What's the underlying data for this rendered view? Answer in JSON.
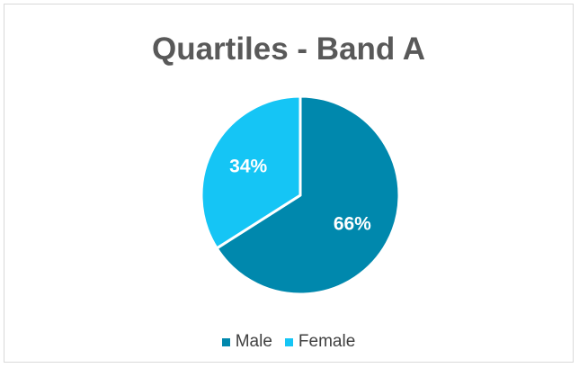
{
  "chart_data": {
    "type": "pie",
    "title": "Quartiles - Band A",
    "categories": [
      "Male",
      "Female"
    ],
    "values": [
      66,
      34
    ],
    "data_labels": [
      "66%",
      "34%"
    ],
    "colors": [
      "#0088ad",
      "#15c5f5"
    ],
    "legend_position": "bottom",
    "start_angle": "12 o'clock, clockwise"
  }
}
